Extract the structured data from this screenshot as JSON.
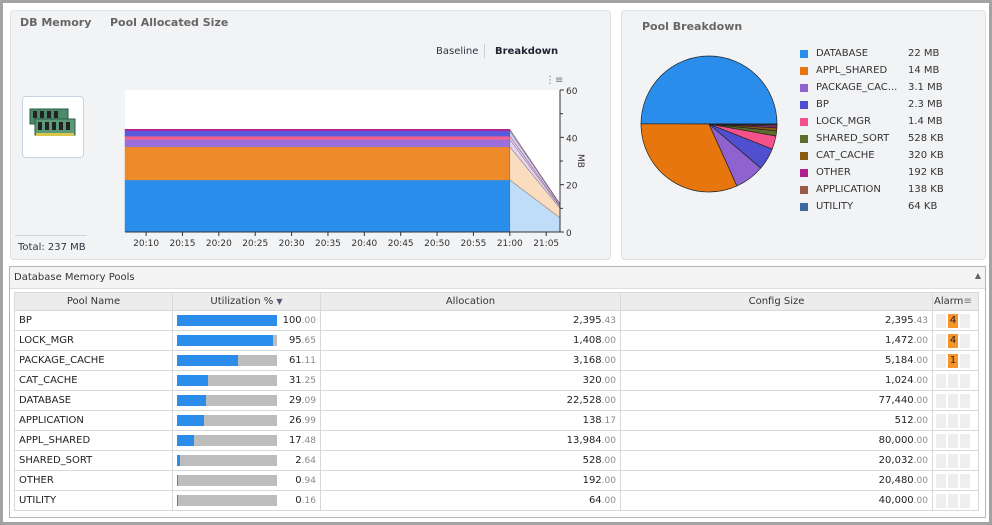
{
  "left_panel": {
    "tab_db_memory": "DB Memory",
    "tab_pool_allocated": "Pool Allocated Size",
    "baseline": "Baseline",
    "breakdown": "Breakdown",
    "total": "Total: 237 MB",
    "memory_icon": "ram-modules-icon"
  },
  "chart_data": {
    "type": "area",
    "stacked": true,
    "ylabel": "MB",
    "ylim": [
      0,
      60
    ],
    "yticks": [
      "0",
      "20",
      "40",
      "60"
    ],
    "xticks": [
      "20:10",
      "20:15",
      "20:20",
      "20:25",
      "20:30",
      "20:35",
      "20:40",
      "20:45",
      "20:50",
      "20:55",
      "21:00",
      "21:05"
    ],
    "x": [
      "20:07",
      "21:00",
      "21:07"
    ],
    "series": [
      {
        "name": "DATABASE",
        "color": "#2a8ceb",
        "values": [
          22,
          22,
          6
        ]
      },
      {
        "name": "APPL_SHARED",
        "color": "#ee8a2a",
        "values": [
          14,
          14,
          4
        ]
      },
      {
        "name": "PACKAGE_CACHE",
        "color": "#9a6fdc",
        "values": [
          3.1,
          3.1,
          0.6
        ]
      },
      {
        "name": "LOCK_MGR",
        "color": "#f4608e",
        "values": [
          1.4,
          1.4,
          0.4
        ]
      },
      {
        "name": "BP",
        "color": "#5a5adc",
        "values": [
          2.3,
          2.3,
          0.6
        ]
      },
      {
        "name": "OTHER",
        "color": "#b0208f",
        "values": [
          0.6,
          0.6,
          0.3
        ]
      }
    ]
  },
  "pie": {
    "title": "Pool Breakdown",
    "items": [
      {
        "label": "DATABASE",
        "value": "22 MB",
        "mb": 22,
        "color": "#2a8ceb"
      },
      {
        "label": "APPL_SHARED",
        "value": "14 MB",
        "mb": 14,
        "color": "#e8760f"
      },
      {
        "label": "PACKAGE_CAC...",
        "value": "3.1 MB",
        "mb": 3.1,
        "color": "#8f62d0"
      },
      {
        "label": "BP",
        "value": "2.3 MB",
        "mb": 2.3,
        "color": "#4f4fcf"
      },
      {
        "label": "LOCK_MGR",
        "value": "1.4 MB",
        "mb": 1.4,
        "color": "#f4508a"
      },
      {
        "label": "SHARED_SORT",
        "value": "528 KB",
        "mb": 0.528,
        "color": "#5f6b2a"
      },
      {
        "label": "CAT_CACHE",
        "value": "320 KB",
        "mb": 0.32,
        "color": "#8a5a10"
      },
      {
        "label": "OTHER",
        "value": "192 KB",
        "mb": 0.192,
        "color": "#b0208f"
      },
      {
        "label": "APPLICATION",
        "value": "138 KB",
        "mb": 0.138,
        "color": "#9a5a4a"
      },
      {
        "label": "UTILITY",
        "value": "64 KB",
        "mb": 0.064,
        "color": "#3a6a9f"
      }
    ]
  },
  "grid": {
    "title": "Database Memory Pools",
    "columns": [
      "Pool Name",
      "Utilization %",
      "Allocation",
      "Config Size",
      "Alarm"
    ],
    "rows": [
      {
        "name": "BP",
        "util_i": "100",
        "util_d": ".00",
        "util": 100,
        "alloc_i": "2,395",
        "alloc_d": ".43",
        "cfg_i": "2,395",
        "cfg_d": ".43",
        "alarm": "4"
      },
      {
        "name": "LOCK_MGR",
        "util_i": "95",
        "util_d": ".65",
        "util": 95.65,
        "alloc_i": "1,408",
        "alloc_d": ".00",
        "cfg_i": "1,472",
        "cfg_d": ".00",
        "alarm": "4"
      },
      {
        "name": "PACKAGE_CACHE",
        "util_i": "61",
        "util_d": ".11",
        "util": 61.11,
        "alloc_i": "3,168",
        "alloc_d": ".00",
        "cfg_i": "5,184",
        "cfg_d": ".00",
        "alarm": "1"
      },
      {
        "name": "CAT_CACHE",
        "util_i": "31",
        "util_d": ".25",
        "util": 31.25,
        "alloc_i": "320",
        "alloc_d": ".00",
        "cfg_i": "1,024",
        "cfg_d": ".00",
        "alarm": ""
      },
      {
        "name": "DATABASE",
        "util_i": "29",
        "util_d": ".09",
        "util": 29.09,
        "alloc_i": "22,528",
        "alloc_d": ".00",
        "cfg_i": "77,440",
        "cfg_d": ".00",
        "alarm": ""
      },
      {
        "name": "APPLICATION",
        "util_i": "26",
        "util_d": ".99",
        "util": 26.99,
        "alloc_i": "138",
        "alloc_d": ".17",
        "cfg_i": "512",
        "cfg_d": ".00",
        "alarm": ""
      },
      {
        "name": "APPL_SHARED",
        "util_i": "17",
        "util_d": ".48",
        "util": 17.48,
        "alloc_i": "13,984",
        "alloc_d": ".00",
        "cfg_i": "80,000",
        "cfg_d": ".00",
        "alarm": ""
      },
      {
        "name": "SHARED_SORT",
        "util_i": "2",
        "util_d": ".64",
        "util": 2.64,
        "alloc_i": "528",
        "alloc_d": ".00",
        "cfg_i": "20,032",
        "cfg_d": ".00",
        "alarm": ""
      },
      {
        "name": "OTHER",
        "util_i": "0",
        "util_d": ".94",
        "util": 0.94,
        "alloc_i": "192",
        "alloc_d": ".00",
        "cfg_i": "20,480",
        "cfg_d": ".00",
        "alarm": ""
      },
      {
        "name": "UTILITY",
        "util_i": "0",
        "util_d": ".16",
        "util": 0.16,
        "alloc_i": "64",
        "alloc_d": ".00",
        "cfg_i": "40,000",
        "cfg_d": ".00",
        "alarm": ""
      }
    ]
  }
}
